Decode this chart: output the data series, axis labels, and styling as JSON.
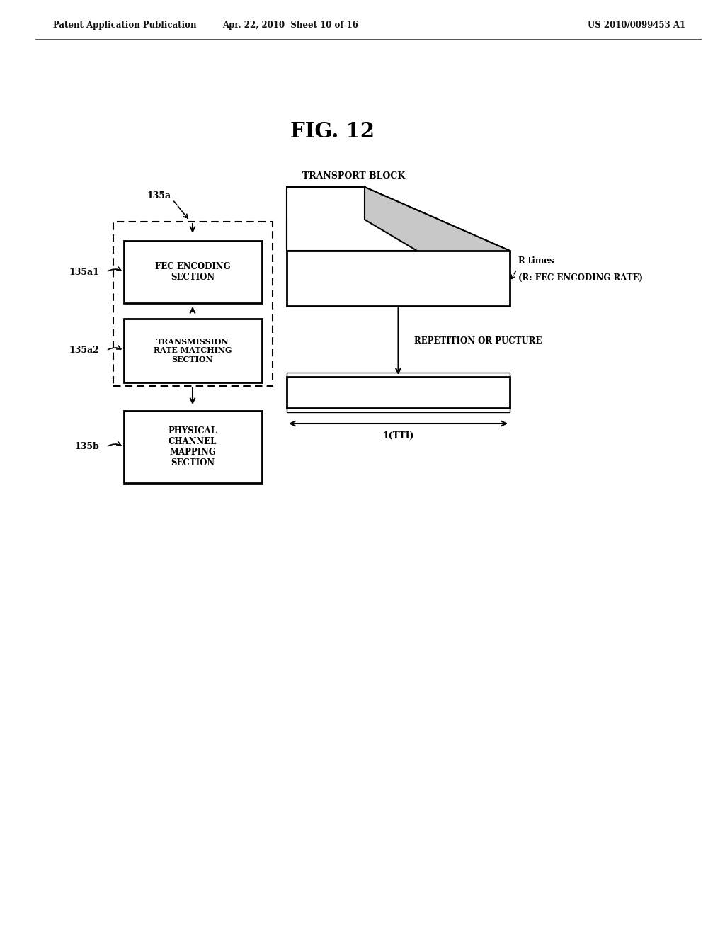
{
  "background_color": "#ffffff",
  "fig_title": "FIG. 12",
  "header_left": "Patent Application Publication",
  "header_center": "Apr. 22, 2010  Sheet 10 of 16",
  "header_right": "US 2010/0099453 A1",
  "transport_block_label": "TRANSPORT BLOCK",
  "r_times_line1": "R times",
  "r_times_line2": "(R: FEC ENCODING RATE)",
  "repetition_label": "REPETITION OR PUCTURE",
  "tti_label": "1(TTI)",
  "box_fec_label": "FEC ENCODING\nSECTION",
  "box_rate_label": "TRANSMISSION\nRATE MATCHING\nSECTION",
  "box_physical_label": "PHYSICAL\nCHANNEL\nMAPPING\nSECTION",
  "label_135a": "135a",
  "label_135a1": "135a1",
  "label_135a2": "135a2",
  "label_135b": "135b"
}
